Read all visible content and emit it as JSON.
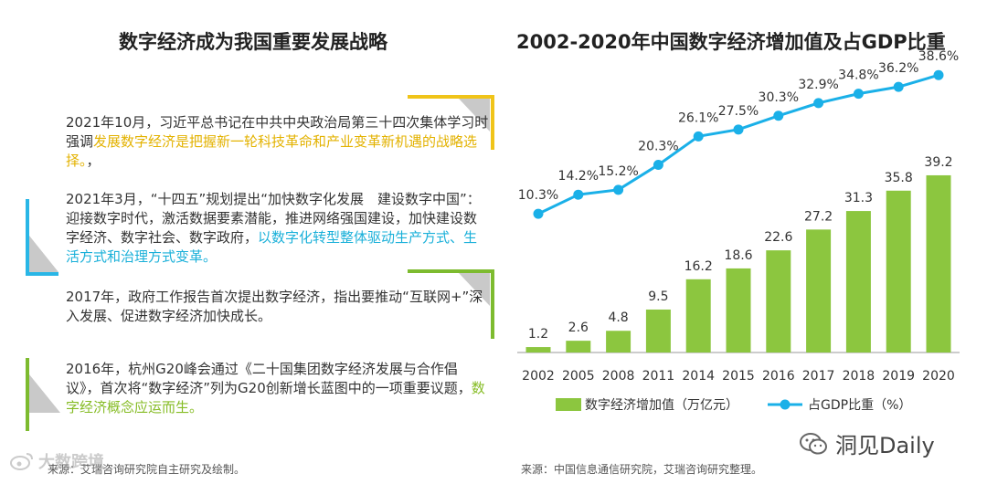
{
  "left": {
    "title": "数字经济成为我国重要发展战略",
    "cards": [
      {
        "pre": "2021年10月，习近平总书记在中共中央政治局第三十四次集体学习时强调",
        "hl": "发展数字经济是把握新一轮科技革命和产业变革新机遇的战略选择。",
        "post": "，"
      },
      {
        "pre": "2021年3月，“十四五”规划提出“加快数字化发展　建设数字中国”：迎接数字时代，激活数据要素潜能，推进网络强国建设，加快建设数字经济、数字社会、数字政府，",
        "hl": "以数字化转型整体驱动生产方式、生活方式和治理方式变革。",
        "post": ""
      },
      {
        "pre": "2017年，政府工作报告首次提出数字经济，指出要推动“互联网+”深入发展、促进数字经济加快成长。",
        "hl": "",
        "post": ""
      },
      {
        "pre": "2016年，杭州G20峰会通过《二十国集团数字经济发展与合作倡议》，首次将“数字经济”列为G20创新增长蓝图中的一项重要议题，",
        "hl": "数字经济概念应运而生。",
        "post": ""
      }
    ],
    "source": "来源：艾瑞咨询研究院自主研究及绘制。"
  },
  "watermarks": {
    "left": "大数跨境",
    "right": "洞见Daily"
  },
  "chart_data": {
    "type": "bar+line",
    "title": "2002-2020年中国数字经济增加值及占GDP比重",
    "categories": [
      "2002",
      "2005",
      "2008",
      "2011",
      "2014",
      "2015",
      "2016",
      "2017",
      "2018",
      "2019",
      "2020"
    ],
    "series": [
      {
        "name": "数字经济增加值（万亿元）",
        "type": "bar",
        "values": [
          1.2,
          2.6,
          4.8,
          9.5,
          16.2,
          18.6,
          22.6,
          27.2,
          31.3,
          35.8,
          39.2
        ],
        "labels": [
          "1.2",
          "2.6",
          "4.8",
          "9.5",
          "16.2",
          "18.6",
          "22.6",
          "27.2",
          "31.3",
          "35.8",
          "39.2"
        ]
      },
      {
        "name": "占GDP比重（%）",
        "type": "line",
        "values": [
          10.3,
          14.2,
          15.2,
          20.3,
          26.1,
          27.5,
          30.3,
          32.9,
          34.8,
          36.2,
          38.6
        ],
        "labels": [
          "10.3%",
          "14.2%",
          "15.2%",
          "20.3%",
          "26.1%",
          "27.5%",
          "30.3%",
          "32.9%",
          "34.8%",
          "36.2%",
          "38.6%"
        ]
      }
    ],
    "bar_ylim": [
      0,
      50
    ],
    "line_ylim": [
      -18,
      42
    ],
    "legend_position": "bottom",
    "source": "来源：中国信息通信研究院，艾瑞咨询研究整理。"
  },
  "colors": {
    "bar": "#8cc63f",
    "line": "#1ab0e8",
    "yellow": "#f0c419",
    "blue": "#29b6e6",
    "green": "#7dbb2f"
  }
}
